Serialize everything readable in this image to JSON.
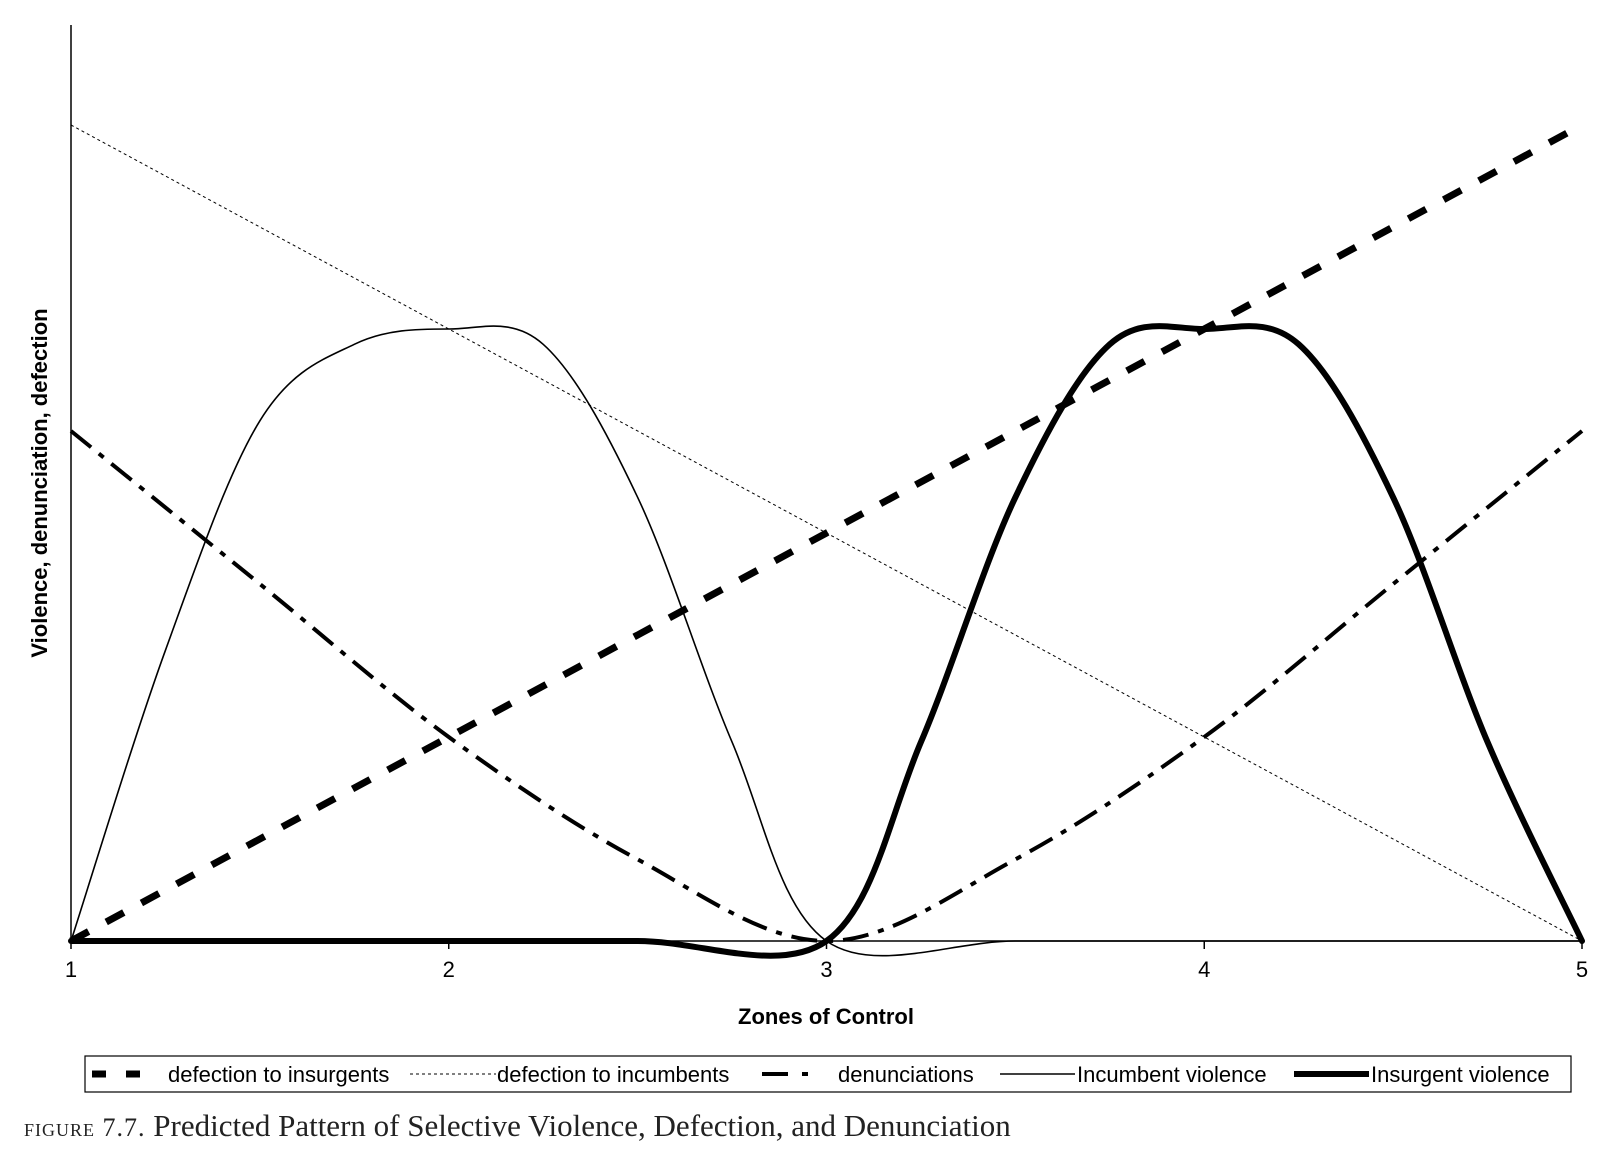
{
  "chart_data": {
    "type": "line",
    "title": "",
    "xlabel": "Zones of Control",
    "ylabel": "Violence, denunciation, defection",
    "x_ticks": [
      "1",
      "2",
      "3",
      "4",
      "5"
    ],
    "xlim": [
      1,
      5
    ],
    "ylim": [
      0,
      9
    ],
    "grid": false,
    "legend_position": "bottom",
    "series": [
      {
        "name": "defection to insurgents",
        "style": "thick-dashed",
        "x": [
          1,
          2,
          3,
          4,
          5
        ],
        "y": [
          0,
          2,
          4,
          6,
          8
        ]
      },
      {
        "name": "defection to incumbents",
        "style": "thin-dotted",
        "x": [
          1,
          2,
          3,
          4,
          5
        ],
        "y": [
          8,
          6,
          4,
          2,
          0
        ]
      },
      {
        "name": "denunciations",
        "style": "dash-dot",
        "x": [
          1,
          1.5,
          2,
          2.5,
          3,
          3.5,
          4,
          4.5,
          5
        ],
        "y": [
          5,
          3.5,
          2,
          0.8,
          0,
          0.8,
          2,
          3.5,
          5
        ]
      },
      {
        "name": "Incumbent violence",
        "style": "thin-solid",
        "x": [
          1,
          1.25,
          1.5,
          1.75,
          2,
          2.25,
          2.5,
          2.75,
          3,
          3.5,
          4,
          4.5,
          5
        ],
        "y": [
          0,
          2.85,
          5.1,
          5.85,
          6,
          5.85,
          4.35,
          1.95,
          0,
          0,
          0,
          0,
          0
        ]
      },
      {
        "name": "Insurgent violence",
        "style": "thick-solid",
        "x": [
          1,
          1.5,
          2,
          2.5,
          3,
          3.25,
          3.5,
          3.75,
          4,
          4.25,
          4.5,
          4.75,
          5
        ],
        "y": [
          0,
          0,
          0,
          0,
          0,
          1.95,
          4.35,
          5.85,
          6,
          5.85,
          4.35,
          1.95,
          0
        ]
      }
    ]
  },
  "caption": {
    "label": "figure 7.7.",
    "text": "Predicted Pattern of Selective Violence, Defection, and Denunciation"
  }
}
